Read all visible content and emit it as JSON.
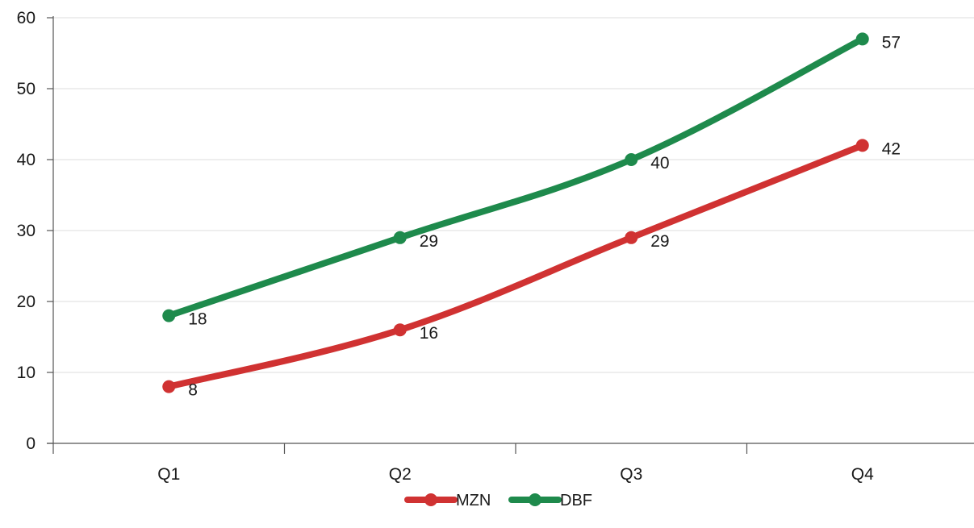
{
  "chart_data": {
    "type": "line",
    "categories": [
      "Q1",
      "Q2",
      "Q3",
      "Q4"
    ],
    "ylim": [
      0,
      60
    ],
    "yticks": [
      0,
      10,
      20,
      30,
      40,
      50,
      60
    ],
    "grid": true,
    "legend_position": "bottom",
    "series": [
      {
        "name": "MZN",
        "color": "#d03232",
        "values": [
          8,
          16,
          29,
          42
        ],
        "labels": [
          "8",
          "16",
          "29",
          "42"
        ]
      },
      {
        "name": "DBF",
        "color": "#1e8a4c",
        "values": [
          18,
          29,
          40,
          57
        ],
        "labels": [
          "18",
          "29",
          "40",
          "57"
        ]
      }
    ]
  }
}
